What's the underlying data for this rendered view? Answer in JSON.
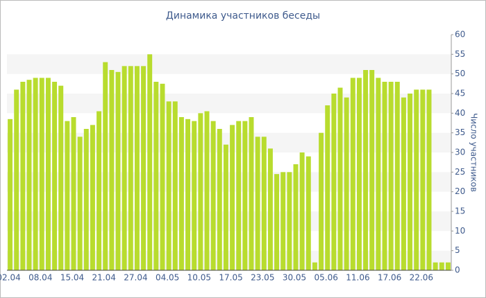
{
  "chart_data": {
    "type": "bar",
    "title": "Динамика участников беседы",
    "y_label": "Число участников",
    "categories": [
      "02.04",
      null,
      null,
      null,
      null,
      "08.04",
      null,
      null,
      null,
      null,
      "15.04",
      null,
      null,
      null,
      null,
      "21.04",
      null,
      null,
      null,
      null,
      "27.04",
      null,
      null,
      null,
      null,
      "04.05",
      null,
      null,
      null,
      null,
      "10.05",
      null,
      null,
      null,
      null,
      "17.05",
      null,
      null,
      null,
      null,
      "23.05",
      null,
      null,
      null,
      null,
      "30.05",
      null,
      null,
      null,
      null,
      "05.06",
      null,
      null,
      null,
      null,
      "11.06",
      null,
      null,
      null,
      null,
      "17.06",
      null,
      null,
      null,
      null,
      "22.06",
      null,
      null,
      null,
      null
    ],
    "values": [
      38.5,
      46,
      48,
      48.5,
      49,
      49,
      49,
      48,
      47,
      38,
      39,
      34,
      36,
      37,
      40.5,
      53,
      51,
      50.5,
      52,
      52,
      52,
      52,
      55,
      48,
      47.5,
      43,
      43,
      39,
      38.5,
      38,
      40,
      40.5,
      38,
      36,
      32,
      37,
      38,
      38,
      39,
      34,
      34,
      31,
      24.5,
      25,
      25,
      27,
      30,
      29,
      2,
      35,
      42,
      45,
      46.5,
      44,
      49,
      49,
      51,
      51,
      49,
      48,
      48,
      48,
      44,
      45,
      46,
      46,
      46,
      2,
      2,
      2
    ],
    "color": "#b8dc2e",
    "ylim": [
      0,
      60
    ],
    "yticks": [
      0,
      5,
      10,
      15,
      20,
      25,
      30,
      35,
      40,
      45,
      50,
      55,
      60
    ],
    "grid": true
  }
}
